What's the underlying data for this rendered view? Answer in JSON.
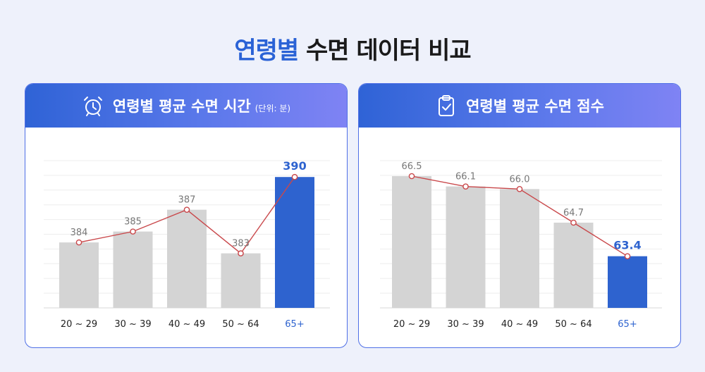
{
  "page": {
    "title_accent": "연령별",
    "title_rest": " 수면 데이터 비교"
  },
  "panels": [
    {
      "header_title": "연령별 평균 수면 시간",
      "header_unit": "(단위: 분)",
      "icon": "alarm-clock-icon"
    },
    {
      "header_title": "연령별 평균 수면 점수",
      "header_unit": "",
      "icon": "clipboard-check-icon"
    }
  ],
  "colors": {
    "bar": "#d4d4d4",
    "highlight": "#2e63cf",
    "line": "#c9484b",
    "label": "#777777",
    "highlight_label": "#2e63cf"
  },
  "chart_data": [
    {
      "type": "bar",
      "title": "연령별 평균 수면 시간",
      "categories": [
        "20 ~ 29",
        "30 ~ 39",
        "40 ~ 49",
        "50 ~ 64",
        "65+"
      ],
      "values": [
        384,
        385,
        387,
        383,
        390
      ],
      "data_labels": [
        "384",
        "385",
        "387",
        "383",
        "390"
      ],
      "highlight_index": 4,
      "overlay_line": true,
      "ylim": [
        378,
        391.5
      ],
      "grid": true
    },
    {
      "type": "bar",
      "title": "연령별 평균 수면 점수",
      "categories": [
        "20 ~ 29",
        "30 ~ 39",
        "40 ~ 49",
        "50 ~ 64",
        "65+"
      ],
      "values": [
        66.5,
        66.1,
        66.0,
        64.7,
        63.4
      ],
      "data_labels": [
        "66.5",
        "66.1",
        "66.0",
        "64.7",
        "63.4"
      ],
      "highlight_index": 4,
      "overlay_line": true,
      "ylim": [
        61.4,
        67.1
      ],
      "grid": true
    }
  ]
}
